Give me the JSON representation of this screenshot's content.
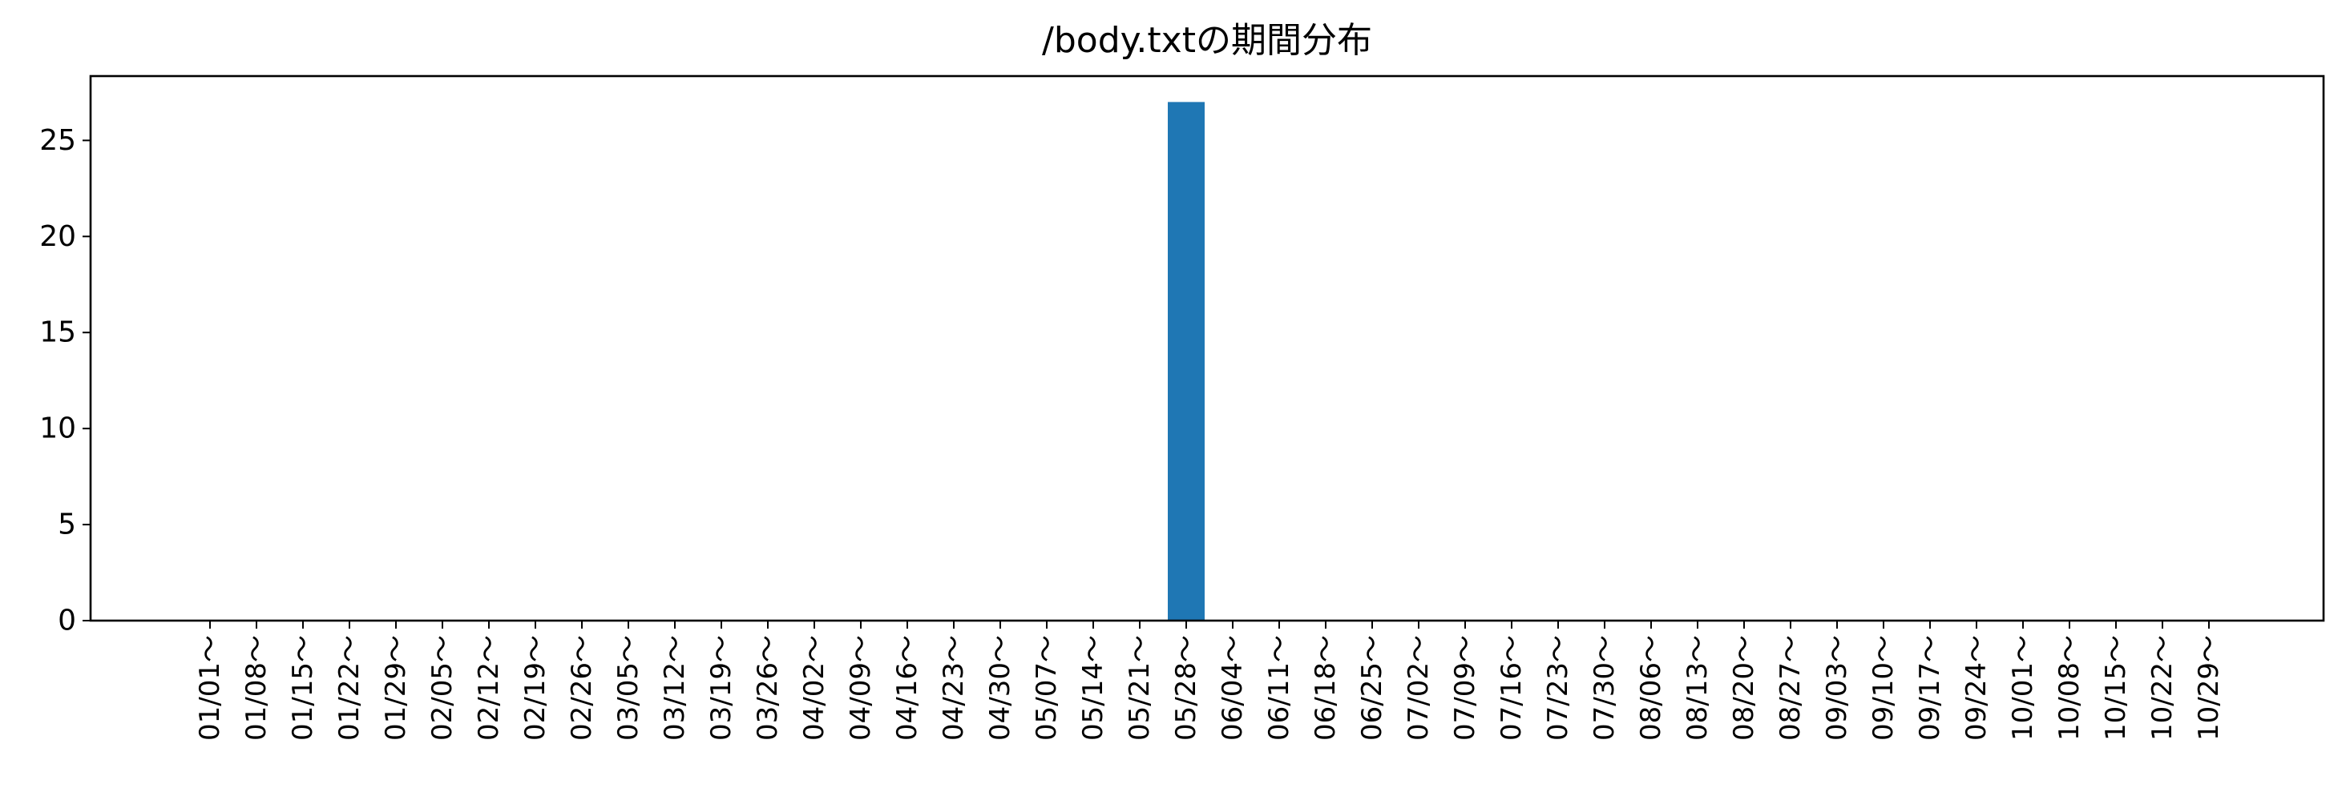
{
  "chart_data": {
    "type": "bar",
    "title": "/body.txtの期間分布",
    "xlabel": "",
    "ylabel": "",
    "categories": [
      "01/01～",
      "01/08～",
      "01/15～",
      "01/22～",
      "01/29～",
      "02/05～",
      "02/12～",
      "02/19～",
      "02/26～",
      "03/05～",
      "03/12～",
      "03/19～",
      "03/26～",
      "04/02～",
      "04/09～",
      "04/16～",
      "04/23～",
      "04/30～",
      "05/07～",
      "05/14～",
      "05/21～",
      "05/28～",
      "06/04～",
      "06/11～",
      "06/18～",
      "06/25～",
      "07/02～",
      "07/09～",
      "07/16～",
      "07/23～",
      "07/30～",
      "08/06～",
      "08/13～",
      "08/20～",
      "08/27～",
      "09/03～",
      "09/10～",
      "09/17～",
      "09/24～",
      "10/01～",
      "10/08～",
      "10/15～",
      "10/22～",
      "10/29～"
    ],
    "values": [
      0,
      0,
      0,
      0,
      0,
      0,
      0,
      0,
      0,
      0,
      0,
      0,
      0,
      0,
      0,
      0,
      0,
      0,
      0,
      0,
      0,
      27,
      0,
      0,
      0,
      0,
      0,
      0,
      0,
      0,
      0,
      0,
      0,
      0,
      0,
      0,
      0,
      0,
      0,
      0,
      0,
      0,
      0,
      0
    ],
    "yticks": [
      "0",
      "5",
      "10",
      "15",
      "20",
      "25"
    ],
    "ylim": [
      0,
      28.35
    ],
    "grid": false,
    "legend": "none",
    "bar_color": "#1f77b4"
  }
}
